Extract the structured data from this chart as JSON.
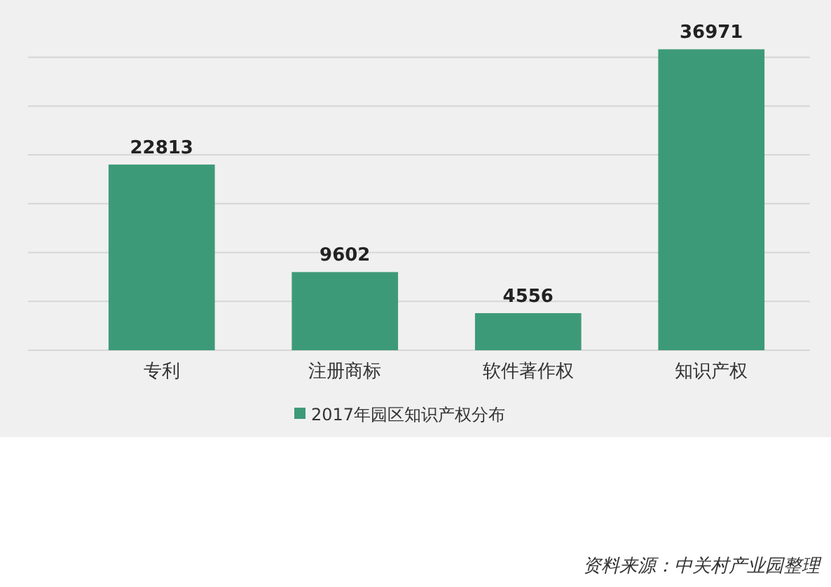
{
  "chart_data": {
    "type": "bar",
    "categories": [
      "专利",
      "注册商标",
      "软件著作权",
      "知识产权"
    ],
    "series": [
      {
        "name": "2017年园区知识产权分布",
        "color": "#3d9a78",
        "values": [
          22813,
          9602,
          4556,
          36971
        ]
      }
    ],
    "yticks": [
      {
        "value": 0,
        "label": null
      },
      {
        "value": 6000,
        "label": null
      },
      {
        "value": 12000,
        "label": null
      },
      {
        "value": 18000,
        "label": null
      },
      {
        "value": 24000,
        "label": null
      },
      {
        "value": 30000,
        "label": null
      },
      {
        "value": 36000,
        "label": null
      }
    ],
    "grid": "y",
    "tick_labels": "x",
    "data_labels": true,
    "legend": "bottom",
    "annotations": [
      "资料来源：中关村产业园整理"
    ]
  }
}
